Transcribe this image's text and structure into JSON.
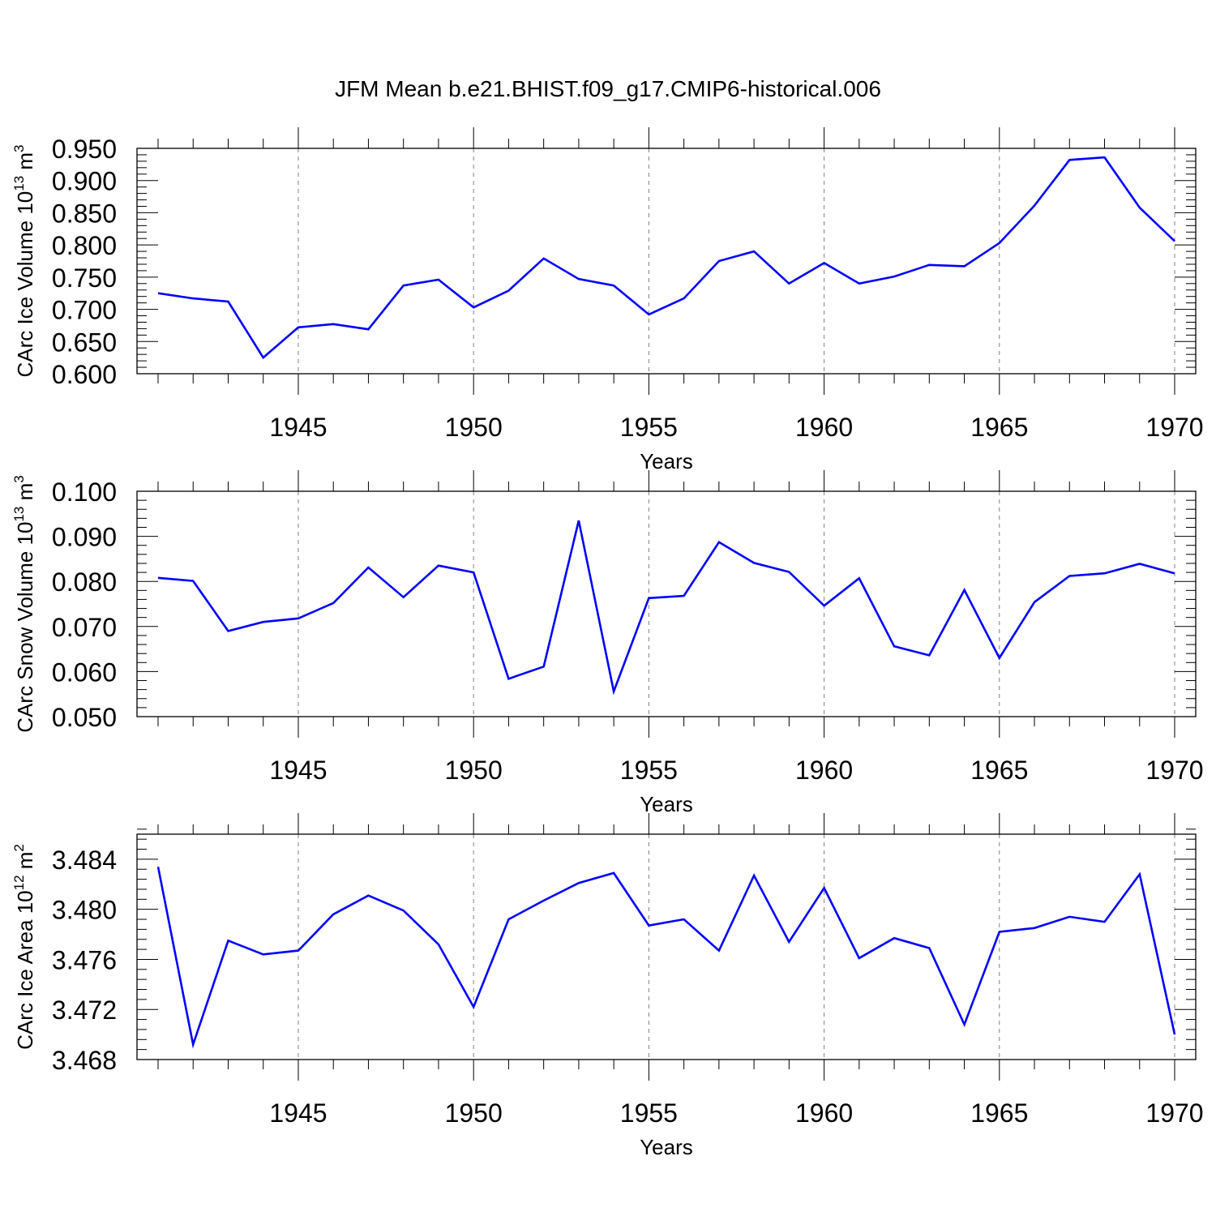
{
  "figure_title": "JFM Mean b.e21.BHIST.f09_g17.CMIP6-historical.006",
  "colors": {
    "series": "#0000ff",
    "axis": "#000000",
    "grid": "#808080"
  },
  "chart_data": [
    {
      "type": "line",
      "title": "",
      "xlabel": "Years",
      "ylabel": "CArc Ice Volume 10",
      "ylabel_exp": "13",
      "ylabel_unit": " m",
      "ylabel_unit_exp": "3",
      "xlim": [
        1941,
        1970
      ],
      "ylim": [
        0.6,
        0.95
      ],
      "xticks": [
        1945,
        1950,
        1955,
        1960,
        1965,
        1970
      ],
      "xtick_labels": [
        "1945",
        "1950",
        "1955",
        "1960",
        "1965",
        "1970"
      ],
      "yticks": [
        0.6,
        0.65,
        0.7,
        0.75,
        0.8,
        0.85,
        0.9,
        0.95
      ],
      "ytick_labels": [
        "0.600",
        "0.650",
        "0.700",
        "0.750",
        "0.800",
        "0.850",
        "0.900",
        "0.950"
      ],
      "x": [
        1941,
        1942,
        1943,
        1944,
        1945,
        1946,
        1947,
        1948,
        1949,
        1950,
        1951,
        1952,
        1953,
        1954,
        1955,
        1956,
        1957,
        1958,
        1959,
        1960,
        1961,
        1962,
        1963,
        1964,
        1965,
        1966,
        1967,
        1968,
        1969,
        1970
      ],
      "series": [
        {
          "name": "CArc Ice Volume",
          "values": [
            0.725,
            0.717,
            0.712,
            0.625,
            0.672,
            0.677,
            0.669,
            0.737,
            0.746,
            0.703,
            0.729,
            0.779,
            0.747,
            0.737,
            0.692,
            0.717,
            0.775,
            0.79,
            0.74,
            0.772,
            0.74,
            0.751,
            0.769,
            0.767,
            0.803,
            0.861,
            0.932,
            0.936,
            0.858,
            0.806
          ]
        }
      ]
    },
    {
      "type": "line",
      "title": "",
      "xlabel": "Years",
      "ylabel": "CArc Snow Volume 10",
      "ylabel_exp": "13",
      "ylabel_unit": " m",
      "ylabel_unit_exp": "3",
      "xlim": [
        1941,
        1970
      ],
      "ylim": [
        0.05,
        0.1
      ],
      "xticks": [
        1945,
        1950,
        1955,
        1960,
        1965,
        1970
      ],
      "xtick_labels": [
        "1945",
        "1950",
        "1955",
        "1960",
        "1965",
        "1970"
      ],
      "yticks": [
        0.05,
        0.06,
        0.07,
        0.08,
        0.09,
        0.1
      ],
      "ytick_labels": [
        "0.050",
        "0.060",
        "0.070",
        "0.080",
        "0.090",
        "0.100"
      ],
      "x": [
        1941,
        1942,
        1943,
        1944,
        1945,
        1946,
        1947,
        1948,
        1949,
        1950,
        1951,
        1952,
        1953,
        1954,
        1955,
        1956,
        1957,
        1958,
        1959,
        1960,
        1961,
        1962,
        1963,
        1964,
        1965,
        1966,
        1967,
        1968,
        1969,
        1970
      ],
      "series": [
        {
          "name": "CArc Snow Volume",
          "values": [
            0.0808,
            0.0801,
            0.069,
            0.071,
            0.0718,
            0.0752,
            0.0831,
            0.0765,
            0.0835,
            0.082,
            0.0584,
            0.0611,
            0.0935,
            0.0556,
            0.0763,
            0.0768,
            0.0887,
            0.0841,
            0.0821,
            0.0746,
            0.0807,
            0.0656,
            0.0636,
            0.0781,
            0.063,
            0.0754,
            0.0812,
            0.0818,
            0.0839,
            0.0818
          ]
        }
      ]
    },
    {
      "type": "line",
      "title": "",
      "xlabel": "Years",
      "ylabel": "CArc Ice Area 10",
      "ylabel_exp": "12",
      "ylabel_unit": " m",
      "ylabel_unit_exp": "2",
      "xlim": [
        1941,
        1970
      ],
      "ylim": [
        3.468,
        3.486
      ],
      "xticks": [
        1945,
        1950,
        1955,
        1960,
        1965,
        1970
      ],
      "xtick_labels": [
        "1945",
        "1950",
        "1955",
        "1960",
        "1965",
        "1970"
      ],
      "yticks": [
        3.468,
        3.472,
        3.476,
        3.48,
        3.484
      ],
      "ytick_labels": [
        "3.468",
        "3.472",
        "3.476",
        "3.480",
        "3.484"
      ],
      "x": [
        1941,
        1942,
        1943,
        1944,
        1945,
        1946,
        1947,
        1948,
        1949,
        1950,
        1951,
        1952,
        1953,
        1954,
        1955,
        1956,
        1957,
        1958,
        1959,
        1960,
        1961,
        1962,
        1963,
        1964,
        1965,
        1966,
        1967,
        1968,
        1969,
        1970
      ],
      "series": [
        {
          "name": "CArc Ice Area",
          "values": [
            3.4834,
            3.4692,
            3.4775,
            3.4764,
            3.4767,
            3.4796,
            3.4811,
            3.4799,
            3.4772,
            3.4722,
            3.4792,
            3.4807,
            3.4821,
            3.4829,
            3.4787,
            3.4792,
            3.4767,
            3.4827,
            3.4774,
            3.4817,
            3.4761,
            3.4777,
            3.4769,
            3.4708,
            3.4782,
            3.4785,
            3.4794,
            3.479,
            3.4828,
            3.47
          ]
        }
      ]
    }
  ]
}
